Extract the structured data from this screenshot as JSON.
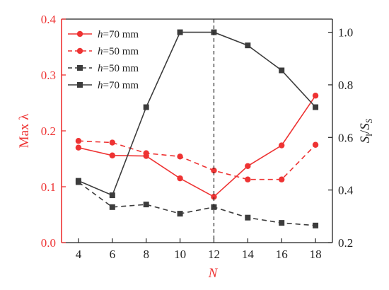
{
  "chart_data": {
    "type": "line",
    "x": [
      4,
      6,
      8,
      10,
      12,
      14,
      16,
      18
    ],
    "xlabel": "N",
    "ylabel_left": "Max λ",
    "ylabel_right_main": "S",
    "ylabel_right_sub1": "l",
    "ylabel_right_slash": "/",
    "ylabel_right_sub2": "S",
    "xlim": [
      3,
      19
    ],
    "ylim_left": [
      0.0,
      0.4
    ],
    "ylim_right": [
      0.2,
      1.05
    ],
    "xticks": [
      "4",
      "6",
      "8",
      "10",
      "12",
      "14",
      "16",
      "18"
    ],
    "yticks_left": [
      "0.0",
      "0.1",
      "0.2",
      "0.3",
      "0.4"
    ],
    "yticks_right": [
      "0.2",
      "0.4",
      "0.6",
      "0.8",
      "1.0"
    ],
    "grid": false,
    "legend_position": "top-left",
    "vline_x": 12,
    "colors": {
      "red": "#ee3333",
      "gray": "#3c3c3c",
      "left_axis": "#ee3333",
      "right_axis": "#222222"
    },
    "series": [
      {
        "name": "h=70 mm",
        "label_italic": "h",
        "label_rest": "=70 mm",
        "axis": "left",
        "color": "#ee3333",
        "dash": false,
        "marker": "circle",
        "values": [
          0.17,
          0.156,
          0.155,
          0.115,
          0.082,
          0.137,
          0.174,
          0.263
        ]
      },
      {
        "name": "h=50 mm",
        "label_italic": "h",
        "label_rest": "=50 mm",
        "axis": "left",
        "color": "#ee3333",
        "dash": true,
        "marker": "circle",
        "values": [
          0.182,
          0.179,
          0.16,
          0.154,
          0.129,
          0.113,
          0.113,
          0.175
        ]
      },
      {
        "name": "h=50 mm",
        "label_italic": "h",
        "label_rest": "=50 mm",
        "axis": "right",
        "color": "#3c3c3c",
        "dash": true,
        "marker": "square",
        "values": [
          0.43,
          0.335,
          0.345,
          0.31,
          0.335,
          0.295,
          0.275,
          0.265
        ]
      },
      {
        "name": "h=70 mm",
        "label_italic": "h",
        "label_rest": "=70 mm",
        "axis": "right",
        "color": "#3c3c3c",
        "dash": false,
        "marker": "square",
        "values": [
          0.435,
          0.38,
          0.715,
          1.0,
          1.0,
          0.95,
          0.855,
          0.715
        ]
      }
    ]
  }
}
